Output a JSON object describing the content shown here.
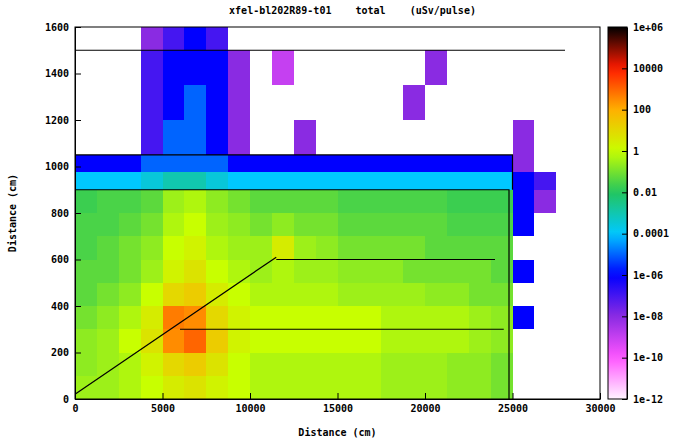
{
  "chart_data": {
    "type": "heatmap",
    "title": "xfel-bl202R89-t01    total    (uSv/pulse)",
    "x_label": "Distance (cm)",
    "y_label": "Distance (cm)",
    "xlim": [
      0,
      30000
    ],
    "ylim": [
      0,
      1600
    ],
    "xticks": [
      0,
      5000,
      10000,
      15000,
      20000,
      25000,
      30000
    ],
    "yticks": [
      0,
      200,
      400,
      600,
      800,
      1000,
      1200,
      1400,
      1600
    ],
    "x_edges": [
      0,
      1250,
      2500,
      3750,
      5000,
      6250,
      7500,
      8750,
      10000,
      11250,
      12500,
      13750,
      15000,
      16250,
      17500,
      18750,
      20000,
      21250,
      22500,
      23750,
      25000,
      26250,
      27500,
      28750,
      30000
    ],
    "y_edges": [
      0,
      100,
      200,
      300,
      400,
      500,
      600,
      700,
      800,
      900,
      975,
      1050,
      1200,
      1350,
      1500,
      1600
    ],
    "values": [
      [
        0.3,
        0.3,
        0.5,
        1,
        3,
        5,
        2,
        1,
        0.5,
        0.5,
        0.5,
        0.5,
        0.5,
        0.5,
        0.3,
        0.3,
        0.3,
        0.2,
        0.2,
        0.1,
        null,
        null,
        null,
        null
      ],
      [
        0.2,
        0.3,
        0.5,
        2,
        10,
        20,
        5,
        1,
        0.5,
        0.5,
        0.5,
        0.5,
        0.5,
        0.5,
        0.3,
        0.3,
        0.3,
        0.2,
        0.2,
        0.1,
        null,
        null,
        null,
        null
      ],
      [
        0.2,
        0.3,
        1,
        5,
        300,
        1000,
        20,
        2,
        1,
        1,
        1,
        1,
        1,
        1,
        0.5,
        0.5,
        0.5,
        0.5,
        0.3,
        0.2,
        null,
        null,
        null,
        null
      ],
      [
        0.1,
        0.2,
        0.5,
        3,
        500,
        300,
        10,
        2,
        1,
        1,
        1,
        1,
        1,
        1,
        0.5,
        0.5,
        0.5,
        0.5,
        0.3,
        0.2,
        1e-06,
        null,
        null,
        null
      ],
      [
        0.05,
        0.1,
        0.2,
        1,
        10,
        20,
        3,
        1,
        0.5,
        0.5,
        0.5,
        0.5,
        0.3,
        0.3,
        0.3,
        0.3,
        0.2,
        0.2,
        0.1,
        0.1,
        null,
        null,
        null,
        null
      ],
      [
        0.05,
        0.05,
        0.1,
        0.3,
        2,
        5,
        1,
        0.5,
        0.3,
        0.5,
        0.3,
        0.3,
        0.2,
        0.2,
        0.2,
        0.1,
        0.1,
        0.1,
        0.1,
        0.05,
        1e-06,
        null,
        null,
        null
      ],
      [
        0.03,
        0.05,
        0.1,
        0.2,
        1,
        2,
        0.5,
        0.3,
        0.3,
        3,
        0.3,
        0.2,
        0.1,
        0.1,
        0.1,
        0.1,
        0.05,
        0.05,
        0.05,
        0.05,
        null,
        null,
        null,
        null
      ],
      [
        0.03,
        0.03,
        0.05,
        0.1,
        0.5,
        1,
        0.3,
        0.2,
        0.1,
        0.2,
        0.1,
        0.1,
        0.05,
        0.05,
        0.05,
        0.05,
        0.05,
        0.03,
        0.03,
        0.03,
        1e-06,
        null,
        null,
        null
      ],
      [
        0.02,
        0.03,
        0.03,
        0.05,
        0.3,
        0.5,
        0.2,
        0.1,
        0.05,
        0.05,
        0.05,
        0.05,
        0.03,
        0.03,
        0.03,
        0.03,
        0.03,
        0.02,
        0.02,
        0.02,
        1e-06,
        1e-08,
        null,
        null
      ],
      [
        0.0001,
        0.0001,
        0.0001,
        0.0003,
        0.001,
        0.001,
        0.0003,
        0.0001,
        0.0001,
        0.0001,
        0.0001,
        0.0001,
        0.0001,
        0.0001,
        0.0001,
        0.0001,
        0.0001,
        0.0001,
        0.0001,
        0.0001,
        1e-06,
        1e-07,
        null,
        null
      ],
      [
        1e-06,
        1e-06,
        1e-06,
        1e-05,
        1e-05,
        1e-05,
        1e-05,
        1e-06,
        1e-06,
        1e-06,
        1e-06,
        1e-06,
        1e-06,
        1e-06,
        1e-06,
        1e-06,
        1e-06,
        1e-06,
        1e-06,
        1e-06,
        1e-08,
        null,
        null,
        null
      ],
      [
        null,
        null,
        null,
        1e-07,
        1e-05,
        1e-05,
        1e-06,
        1e-08,
        null,
        null,
        1e-08,
        null,
        null,
        null,
        null,
        null,
        null,
        null,
        null,
        null,
        1e-08,
        null,
        null,
        null
      ],
      [
        null,
        null,
        null,
        1e-07,
        1e-06,
        1e-05,
        1e-06,
        1e-08,
        null,
        null,
        null,
        null,
        null,
        null,
        null,
        1e-08,
        null,
        null,
        null,
        null,
        null,
        null,
        null,
        null
      ],
      [
        null,
        null,
        null,
        1e-07,
        1e-06,
        1e-06,
        1e-06,
        1e-08,
        null,
        1e-09,
        null,
        null,
        null,
        null,
        null,
        null,
        1e-08,
        null,
        null,
        null,
        null,
        null,
        null,
        null
      ],
      [
        null,
        null,
        null,
        1e-08,
        1e-07,
        1e-06,
        1e-07,
        null,
        null,
        null,
        null,
        null,
        null,
        null,
        null,
        null,
        null,
        null,
        null,
        null,
        null,
        null,
        null,
        null
      ]
    ],
    "structures": [
      {
        "x": [
          0,
          11500
        ],
        "y": [
          20,
          610
        ]
      },
      {
        "x": [
          11500,
          24000
        ],
        "y": [
          600,
          600
        ]
      },
      {
        "x": [
          6000,
          24500
        ],
        "y": [
          300,
          300
        ]
      },
      {
        "x": [
          0,
          24800,
          24800
        ],
        "y": [
          900,
          900,
          0
        ]
      },
      {
        "x": [
          0,
          25000,
          25000
        ],
        "y": [
          1050,
          1050,
          900
        ]
      },
      {
        "x": [
          0,
          28000
        ],
        "y": [
          1500,
          1500
        ]
      }
    ],
    "colorbar": {
      "lim": [
        1e-12,
        1000000
      ],
      "log": true,
      "ticks": [
        {
          "value": 1000000,
          "label": "1e+06"
        },
        10000,
        100,
        1,
        0.01,
        0.0001,
        {
          "value": 1e-06,
          "label": "1e-06"
        },
        {
          "value": 1e-08,
          "label": "1e-08"
        },
        {
          "value": 1e-10,
          "label": "1e-10"
        },
        {
          "value": 1e-12,
          "label": "1e-12"
        }
      ]
    }
  }
}
